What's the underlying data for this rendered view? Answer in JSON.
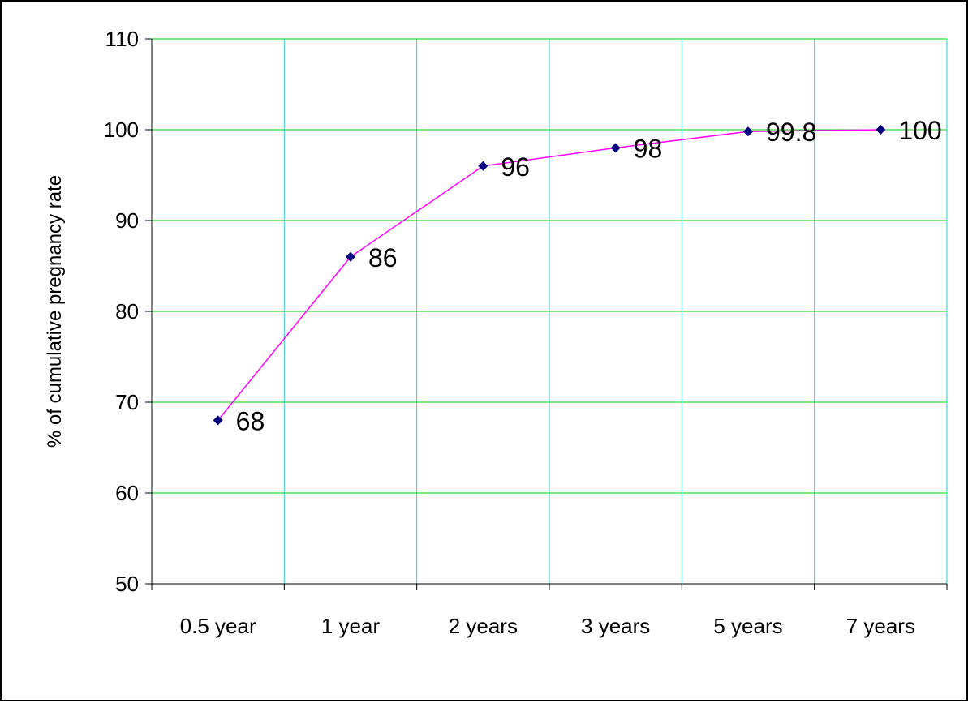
{
  "chart_data": {
    "type": "line",
    "title": "",
    "xlabel": "",
    "ylabel": "% of cumulative pregnancy rate",
    "categories": [
      "0.5 year",
      "1 year",
      "2 years",
      "3 years",
      "5 years",
      "7 years"
    ],
    "series": [
      {
        "values": [
          68,
          86,
          96,
          98,
          99.8,
          100
        ],
        "data_labels": [
          "68",
          "86",
          "96",
          "98",
          "99.8",
          "100"
        ],
        "line_color": "#ff00ff",
        "marker_color": "#000080",
        "marker": "diamond"
      }
    ],
    "ylim": [
      50,
      110
    ],
    "yticks": [
      50,
      60,
      70,
      80,
      90,
      100,
      110
    ],
    "horizontal_grid_color": "#00cc00",
    "vertical_grid_color": "#33cccc",
    "grid": true,
    "legend": "none"
  }
}
